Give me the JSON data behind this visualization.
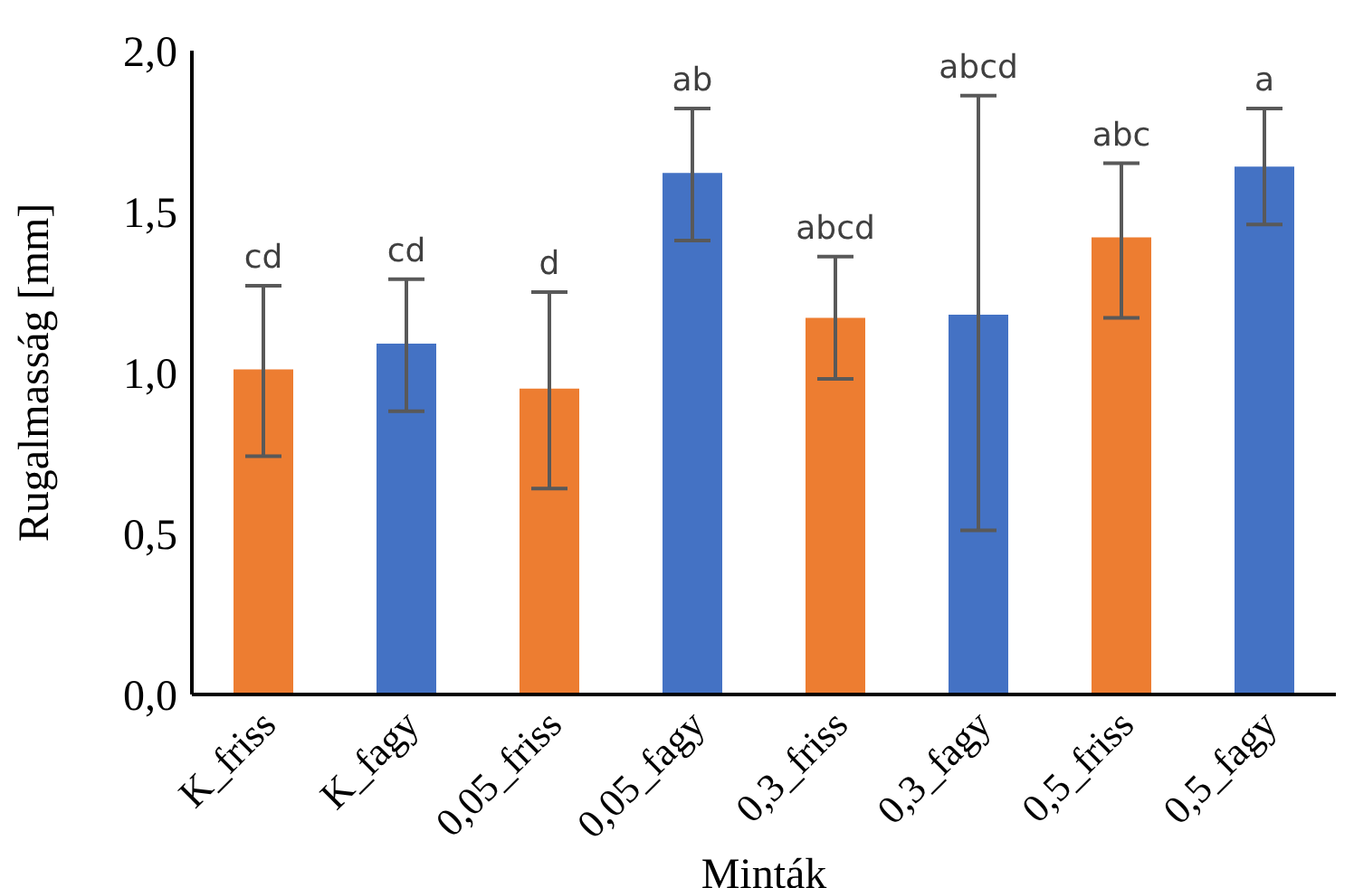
{
  "chart_data": {
    "type": "bar",
    "xlabel": "Minták",
    "ylabel": "Rugalmasság [mm]",
    "categories": [
      "K_friss",
      "K_fagy",
      "0,05_friss",
      "0,05_fagy",
      "0,3_friss",
      "0,3_fagy",
      "0,5_friss",
      "0,5_fagy"
    ],
    "values": [
      1.01,
      1.09,
      0.95,
      1.62,
      1.17,
      1.18,
      1.42,
      1.64
    ],
    "colors": [
      "#ed7d31",
      "#4472c4",
      "#ed7d31",
      "#4472c4",
      "#ed7d31",
      "#4472c4",
      "#ed7d31",
      "#4472c4"
    ],
    "errors": [
      [
        0.74,
        1.27
      ],
      [
        0.88,
        1.29
      ],
      [
        0.64,
        1.25
      ],
      [
        1.41,
        1.82
      ],
      [
        0.98,
        1.36
      ],
      [
        0.51,
        1.86
      ],
      [
        1.17,
        1.65
      ],
      [
        1.46,
        1.82
      ]
    ],
    "annotations": [
      {
        "text": "cd",
        "x": "K_friss",
        "y": 1.27
      },
      {
        "text": "cd",
        "x": "K_fagy",
        "y": 1.29
      },
      {
        "text": "d",
        "x": "0,05_friss",
        "y": 1.25
      },
      {
        "text": "ab",
        "x": "0,05_fagy",
        "y": 1.82
      },
      {
        "text": "abcd",
        "x": "0,3_friss",
        "y": 1.36
      },
      {
        "text": "abcd",
        "x": "0,3_fagy",
        "y": 1.86
      },
      {
        "text": "abc",
        "x": "0,5_friss",
        "y": 1.65
      },
      {
        "text": "a",
        "x": "0,5_fagy",
        "y": 1.82
      }
    ],
    "ylim": [
      0,
      2
    ],
    "yticks": [
      {
        "value": 0,
        "label": "0,0"
      },
      {
        "value": 0.5,
        "label": "0,5"
      },
      {
        "value": 1,
        "label": "1,0"
      },
      {
        "value": 1.5,
        "label": "1,5"
      },
      {
        "value": 2,
        "label": "2,0"
      }
    ],
    "grid": false,
    "legend": false
  }
}
